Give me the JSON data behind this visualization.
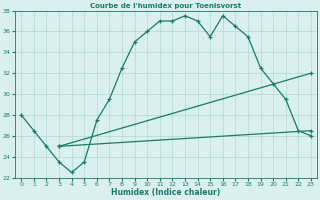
{
  "title": "Courbe de l'humidex pour Toenisvorst",
  "xlabel": "Humidex (Indice chaleur)",
  "bg_color": "#d9f0ef",
  "grid_color": "#b8dcd8",
  "line_color": "#1a7a6a",
  "xlim": [
    -0.5,
    23.5
  ],
  "ylim": [
    22,
    38
  ],
  "xticks": [
    0,
    1,
    2,
    3,
    4,
    5,
    6,
    7,
    8,
    9,
    10,
    11,
    12,
    13,
    14,
    15,
    16,
    17,
    18,
    19,
    20,
    21,
    22,
    23
  ],
  "yticks": [
    22,
    24,
    26,
    28,
    30,
    32,
    34,
    36,
    38
  ],
  "line1_x": [
    0,
    1,
    2,
    3,
    4,
    5,
    6,
    7,
    8,
    9,
    10,
    11,
    12,
    13,
    14,
    15,
    16,
    17,
    18,
    19,
    20,
    21,
    22,
    23
  ],
  "line1_y": [
    28.0,
    26.5,
    25.0,
    23.5,
    22.5,
    23.5,
    27.5,
    29.5,
    32.5,
    35.0,
    36.0,
    37.0,
    37.0,
    37.5,
    37.0,
    35.5,
    37.5,
    36.5,
    35.5,
    32.5,
    31.0,
    29.5,
    26.5,
    26.0
  ],
  "line2_x": [
    3,
    23
  ],
  "line2_y": [
    25.0,
    32.0
  ],
  "line3_x": [
    3,
    23
  ],
  "line3_y": [
    25.0,
    26.5
  ]
}
